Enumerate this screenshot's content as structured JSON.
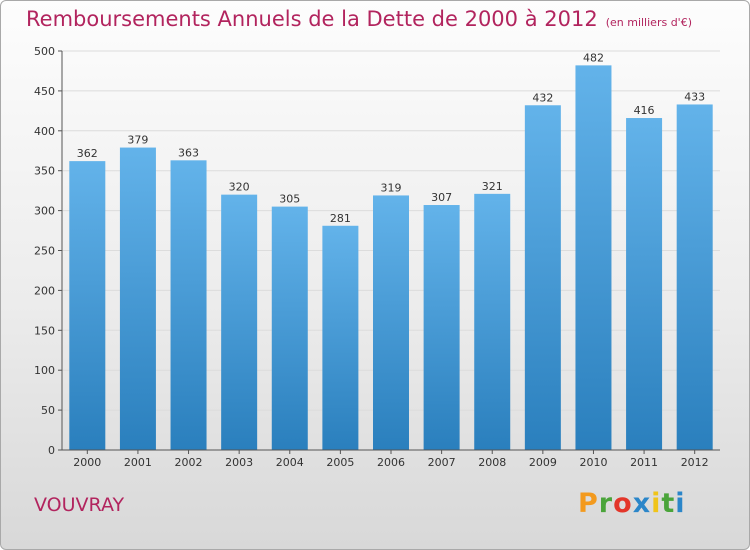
{
  "title": "Remboursements Annuels de la Dette de 2000 à 2012",
  "unit": "(en milliers d'€)",
  "commune": "VOUVRAY",
  "logo": {
    "letters": [
      "P",
      "r",
      "o",
      "x",
      "i",
      "t",
      "i"
    ],
    "colors": [
      "#f39a1e",
      "#4aa43a",
      "#e3362a",
      "#2b86c9",
      "#f0c419",
      "#4aa43a",
      "#2b86c9"
    ]
  },
  "colors": {
    "bar_light": "#63b3ea",
    "bar_dark": "#2a7fbd",
    "title": "#b2245e",
    "grid": "#dcdcdc"
  },
  "chart_data": {
    "type": "bar",
    "title": "Remboursements Annuels de la Dette de 2000 à 2012",
    "categories": [
      "2000",
      "2001",
      "2002",
      "2003",
      "2004",
      "2005",
      "2006",
      "2007",
      "2008",
      "2009",
      "2010",
      "2011",
      "2012"
    ],
    "values": [
      362,
      379,
      363,
      320,
      305,
      281,
      319,
      307,
      321,
      432,
      482,
      416,
      433
    ],
    "ylim": [
      0,
      500
    ],
    "yticks": [
      0,
      50,
      100,
      150,
      200,
      250,
      300,
      350,
      400,
      450,
      500
    ],
    "grid": true,
    "xlabel": "",
    "ylabel": ""
  }
}
